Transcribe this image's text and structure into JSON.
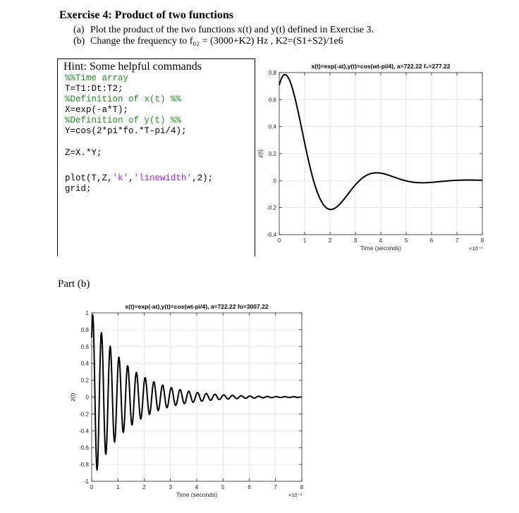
{
  "exercise": {
    "title": "Exercise 4: Product of two functions",
    "items": [
      {
        "label": "(a)",
        "text": "Plot the product of the two functions x(t) and y(t) defined in Exercise 3."
      },
      {
        "label": "(b)",
        "text": "Change the frequency to  f₀₂ = (3000+K2) Hz ,  K2=(S1+S2)/1e6"
      }
    ]
  },
  "hint": {
    "title": "Hint: Some helpful commands",
    "lines": [
      "%%Time array",
      "T=T1:Dt:T2;",
      "%Definition of x(t) %%",
      "X=exp(-a*T);",
      "%Definition of y(t) %%",
      "Y=cos(2*pi*fo.*T-pi/4);",
      "Z=X.*Y;",
      "plot(T,Z,",
      "'k'",
      ",",
      "'linewidth'",
      ",2);",
      "grid;"
    ]
  },
  "part_b_label": "Part (b)",
  "chart_data": [
    {
      "type": "line",
      "title": "x(t)=exp(-at),y(t)=cos(wt-pi/4), a=722.22 f₀=277.22",
      "xlabel": "Time (seconds)",
      "ylabel": "z(t)",
      "x_exponent_label": "×10⁻³",
      "xlim": [
        0,
        8
      ],
      "ylim": [
        -0.4,
        0.8
      ],
      "x_ticks": [
        "0",
        "1",
        "2",
        "3",
        "4",
        "5",
        "6",
        "7",
        "8"
      ],
      "y_ticks": [
        "-0.4",
        "-0.2",
        "0",
        "0.2",
        "0.4",
        "0.6",
        "0.8"
      ],
      "grid": true,
      "function": {
        "a": 722.22,
        "fo": 277.22,
        "t_unit": 0.001
      },
      "line_color": "#000000"
    },
    {
      "type": "line",
      "title": "x(t)=exp(-at),y(t)=cos(wt-pi/4), a=722.22 fo=3007.22",
      "xlabel": "Time (seconds)",
      "ylabel": "z(t)",
      "x_exponent_label": "×10⁻³",
      "xlim": [
        0,
        8
      ],
      "ylim": [
        -1,
        1
      ],
      "x_ticks": [
        "0",
        "1",
        "2",
        "3",
        "4",
        "5",
        "6",
        "7",
        "8"
      ],
      "y_ticks": [
        "-1",
        "-0.8",
        "-0.6",
        "-0.4",
        "-0.2",
        "0",
        "0.2",
        "0.4",
        "0.6",
        "0.8",
        "1"
      ],
      "grid": true,
      "function": {
        "a": 722.22,
        "fo": 3007.22,
        "t_unit": 0.001
      },
      "line_color": "#000000"
    }
  ]
}
